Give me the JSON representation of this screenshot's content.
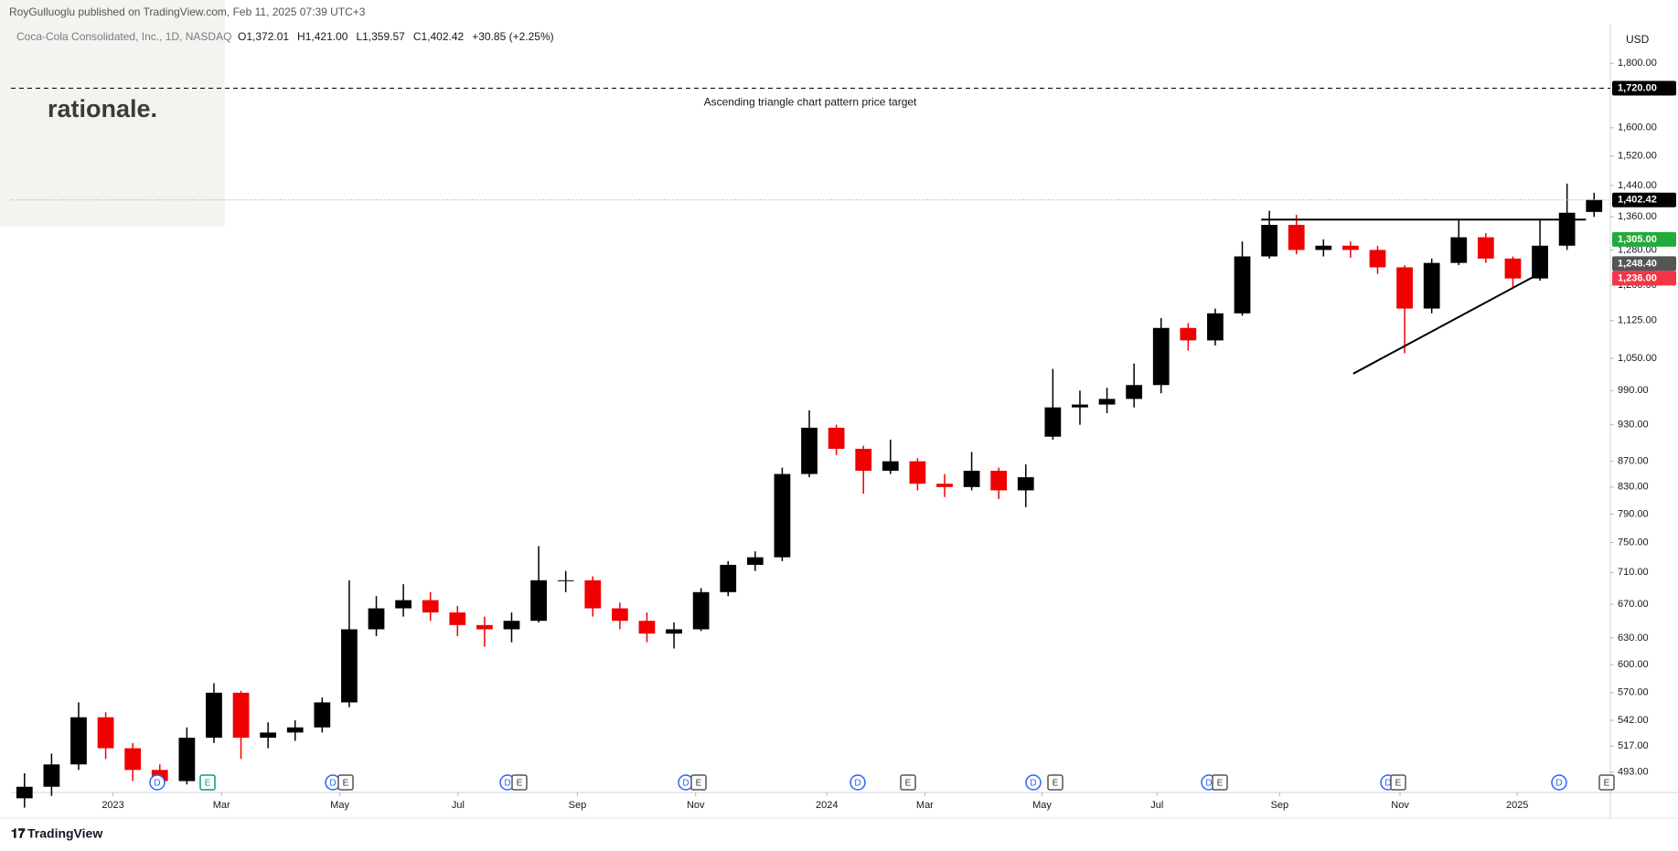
{
  "chart_data": {
    "type": "candlestick",
    "published": "RoyGulluoglu published on TradingView.com, Feb 11, 2025 07:39 UTC+3",
    "title": "Coca-Cola Consolidated, Inc., 1D, NASDAQ",
    "legend_values": [
      "O1,372.01",
      "H1,421.00",
      "L1,359.57",
      "C1,402.42",
      "+30.85 (+2.25%)"
    ],
    "logo": "rationale.",
    "currency": "USD",
    "footer": "TradingView",
    "annotation": "Ascending triangle chart pattern price target",
    "log_scale": true,
    "grid": false,
    "up_color": "#000000",
    "down_color": "#f00000",
    "open": [
      470,
      480,
      500,
      545,
      515,
      495,
      485,
      525,
      570,
      525,
      530,
      535,
      560,
      640,
      665,
      675,
      660,
      645,
      640,
      650,
      700,
      700,
      665,
      650,
      635,
      640,
      685,
      720,
      730,
      850,
      925,
      890,
      855,
      870,
      835,
      830,
      855,
      825,
      910,
      960,
      965,
      975,
      1000,
      1110,
      1085,
      1140,
      1265,
      1340,
      1280,
      1290,
      1280,
      1240,
      1150,
      1250,
      1310,
      1260,
      1215,
      1290,
      1372.01
    ],
    "high": [
      492,
      510,
      560,
      550,
      520,
      500,
      535,
      580,
      572,
      540,
      542,
      565,
      700,
      680,
      695,
      685,
      668,
      655,
      660,
      745,
      712,
      705,
      672,
      660,
      648,
      690,
      725,
      738,
      860,
      955,
      930,
      895,
      905,
      875,
      850,
      885,
      860,
      865,
      1030,
      990,
      995,
      1040,
      1130,
      1120,
      1150,
      1300,
      1375,
      1365,
      1305,
      1300,
      1290,
      1245,
      1260,
      1355,
      1320,
      1265,
      1355,
      1445,
      1421
    ],
    "low": [
      462,
      472,
      495,
      505,
      485,
      478,
      482,
      520,
      505,
      515,
      522,
      530,
      555,
      632,
      655,
      650,
      632,
      620,
      625,
      648,
      685,
      655,
      640,
      625,
      618,
      638,
      680,
      712,
      725,
      845,
      880,
      820,
      850,
      825,
      815,
      825,
      812,
      800,
      905,
      930,
      950,
      960,
      985,
      1065,
      1075,
      1135,
      1260,
      1270,
      1265,
      1262,
      1225,
      1060,
      1140,
      1245,
      1250,
      1195,
      1210,
      1280,
      1359.57
    ],
    "close": [
      480,
      500,
      545,
      515,
      495,
      485,
      525,
      570,
      525,
      530,
      535,
      560,
      640,
      665,
      675,
      660,
      645,
      640,
      650,
      700,
      700,
      665,
      650,
      635,
      640,
      685,
      720,
      730,
      850,
      925,
      890,
      855,
      870,
      835,
      830,
      855,
      825,
      845,
      960,
      965,
      975,
      1000,
      1110,
      1085,
      1140,
      1265,
      1340,
      1280,
      1290,
      1280,
      1240,
      1150,
      1250,
      1310,
      1260,
      1215,
      1290,
      1370,
      1402.42
    ],
    "xlim": [
      -0.5,
      58.6
    ],
    "ylim": [
      475,
      1935
    ],
    "xticks": [
      {
        "value": 3.27,
        "label": "2023"
      },
      {
        "value": 7.28,
        "label": "Mar"
      },
      {
        "value": 11.65,
        "label": "May"
      },
      {
        "value": 16.02,
        "label": "Jul"
      },
      {
        "value": 20.43,
        "label": "Sep"
      },
      {
        "value": 24.8,
        "label": "Nov"
      },
      {
        "value": 29.65,
        "label": "2024"
      },
      {
        "value": 33.27,
        "label": "Mar"
      },
      {
        "value": 37.6,
        "label": "May"
      },
      {
        "value": 41.85,
        "label": "Jul"
      },
      {
        "value": 46.38,
        "label": "Sep"
      },
      {
        "value": 50.83,
        "label": "Nov"
      },
      {
        "value": 55.16,
        "label": "2025"
      }
    ],
    "yticks": [
      {
        "value": 1800,
        "label": "1,800.00"
      },
      {
        "value": 1600,
        "label": "1,600.00"
      },
      {
        "value": 1520,
        "label": "1,520.00"
      },
      {
        "value": 1440,
        "label": "1,440.00"
      },
      {
        "value": 1360,
        "label": "1,360.00"
      },
      {
        "value": 1280,
        "label": "1,280.00"
      },
      {
        "value": 1200,
        "label": "1,200.00"
      },
      {
        "value": 1125,
        "label": "1,125.00"
      },
      {
        "value": 1050,
        "label": "1,050.00"
      },
      {
        "value": 990,
        "label": "990.00"
      },
      {
        "value": 930,
        "label": "930.00"
      },
      {
        "value": 870,
        "label": "870.00"
      },
      {
        "value": 830,
        "label": "830.00"
      },
      {
        "value": 790,
        "label": "790.00"
      },
      {
        "value": 750,
        "label": "750.00"
      },
      {
        "value": 710,
        "label": "710.00"
      },
      {
        "value": 670,
        "label": "670.00"
      },
      {
        "value": 630,
        "label": "630.00"
      },
      {
        "value": 600,
        "label": "600.00"
      },
      {
        "value": 570,
        "label": "570.00"
      },
      {
        "value": 542,
        "label": "542.00"
      },
      {
        "value": 517,
        "label": "517.00"
      },
      {
        "value": 493,
        "label": "493.00"
      }
    ],
    "price_lines": [
      {
        "value": 1720,
        "label": "1,720.00",
        "color": "#000000",
        "style": "dashed"
      },
      {
        "value": 1402.42,
        "label": "1,402.42",
        "color": "#000000",
        "style": "dotted"
      }
    ],
    "price_labels": [
      {
        "value": 1305,
        "label": "1,305.00",
        "color": "#22ab3b"
      },
      {
        "value": 1248.4,
        "label": "1,248.40",
        "color": "#555555"
      },
      {
        "value": 1236,
        "label": "1,236.00",
        "color": "#f23645"
      }
    ],
    "trend_lines": [
      {
        "x": [
          45.7,
          57.7
        ],
        "y": [
          1353,
          1353
        ]
      },
      {
        "x": [
          49.1,
          56.2
        ],
        "y": [
          1021,
          1233
        ]
      }
    ],
    "events": [
      "D",
      "E",
      "D",
      "E",
      "D",
      "E",
      "D",
      "E",
      "D",
      "E",
      "D",
      "E",
      "D",
      "E",
      "D",
      "E",
      "D",
      "E"
    ]
  }
}
